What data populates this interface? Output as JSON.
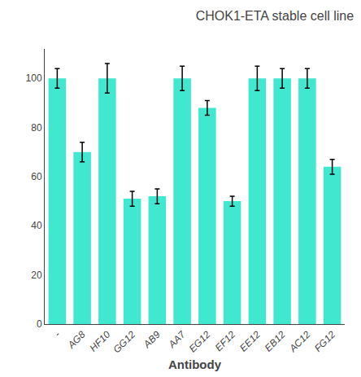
{
  "chart_data": {
    "type": "bar",
    "title": "CHOK1-ETA stable cell line",
    "xlabel": "Antibody",
    "categories": [
      "-",
      "AG8",
      "HF10",
      "GG12",
      "AB9",
      "AA7",
      "EG12",
      "EF12",
      "EE12",
      "EB12",
      "AC12",
      "FG12"
    ],
    "values": [
      100,
      70,
      100,
      51,
      52,
      100,
      88,
      50,
      100,
      100,
      100,
      64
    ],
    "errors": [
      4,
      4,
      6,
      3,
      3,
      5,
      3,
      2,
      5,
      4,
      4,
      3
    ],
    "color": "#40E8D0",
    "ylim": [
      0,
      112
    ],
    "yticks": [
      0,
      20,
      40,
      60,
      80,
      100
    ],
    "grid": false
  }
}
